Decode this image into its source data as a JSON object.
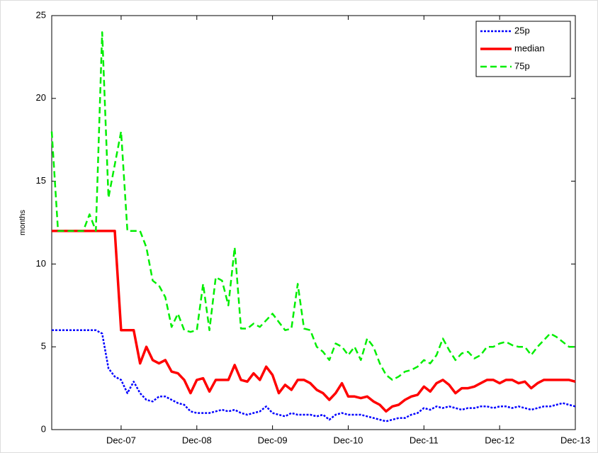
{
  "chart_data": {
    "type": "line",
    "ylabel": "months",
    "categories": [
      null,
      null,
      null,
      null,
      null,
      null,
      null,
      null,
      null,
      null,
      null,
      "Dec-07",
      null,
      null,
      null,
      null,
      null,
      null,
      null,
      null,
      null,
      null,
      null,
      "Dec-08",
      null,
      null,
      null,
      null,
      null,
      null,
      null,
      null,
      null,
      null,
      null,
      "Dec-09",
      null,
      null,
      null,
      null,
      null,
      null,
      null,
      null,
      null,
      null,
      null,
      "Dec-10",
      null,
      null,
      null,
      null,
      null,
      null,
      null,
      null,
      null,
      null,
      null,
      "Dec-11",
      null,
      null,
      null,
      null,
      null,
      null,
      null,
      null,
      null,
      null,
      null,
      "Dec-12",
      null,
      null,
      null,
      null,
      null,
      null,
      null,
      null,
      null,
      null,
      null,
      "Dec-13"
    ],
    "series": [
      {
        "name": "25p",
        "color": "#0000ff",
        "style": "dotted",
        "values": [
          6,
          6,
          6,
          6,
          6,
          6,
          6,
          6,
          5.8,
          3.7,
          3.2,
          3,
          2.2,
          2.9,
          2.2,
          1.8,
          1.7,
          2,
          2,
          1.8,
          1.6,
          1.5,
          1.1,
          1,
          1,
          1,
          1.1,
          1.2,
          1.1,
          1.2,
          1,
          0.9,
          1,
          1.1,
          1.4,
          1,
          0.9,
          0.8,
          1,
          0.9,
          0.9,
          0.9,
          0.8,
          0.9,
          0.6,
          0.9,
          1,
          0.9,
          0.9,
          0.9,
          0.8,
          0.7,
          0.6,
          0.5,
          0.6,
          0.7,
          0.7,
          0.9,
          1,
          1.3,
          1.2,
          1.4,
          1.3,
          1.4,
          1.3,
          1.2,
          1.3,
          1.3,
          1.4,
          1.4,
          1.3,
          1.4,
          1.4,
          1.3,
          1.4,
          1.3,
          1.2,
          1.3,
          1.4,
          1.4,
          1.5,
          1.6,
          1.5,
          1.4
        ]
      },
      {
        "name": "median",
        "color": "#ff0000",
        "style": "solid",
        "values": [
          12,
          12,
          12,
          12,
          12,
          12,
          12,
          12,
          12,
          12,
          12,
          6,
          6,
          6,
          4,
          5,
          4.2,
          4,
          4.2,
          3.5,
          3.4,
          3,
          2.2,
          3,
          3.1,
          2.3,
          3,
          3,
          3,
          3.9,
          3,
          2.9,
          3.4,
          3,
          3.8,
          3.3,
          2.2,
          2.7,
          2.4,
          3,
          3,
          2.8,
          2.4,
          2.2,
          1.8,
          2.2,
          2.8,
          2,
          2,
          1.9,
          2,
          1.7,
          1.5,
          1.1,
          1.4,
          1.5,
          1.8,
          2,
          2.1,
          2.6,
          2.3,
          2.8,
          3,
          2.7,
          2.2,
          2.5,
          2.5,
          2.6,
          2.8,
          3,
          3,
          2.8,
          3,
          3,
          2.8,
          2.9,
          2.5,
          2.8,
          3,
          3,
          3,
          3,
          3,
          2.9
        ]
      },
      {
        "name": "75p",
        "color": "#00ee00",
        "style": "dashed",
        "values": [
          18,
          12,
          12,
          12,
          12,
          12,
          13,
          12,
          24,
          14,
          16,
          18,
          12,
          12,
          12,
          11,
          9,
          8.7,
          8,
          6.2,
          7,
          6,
          5.9,
          6,
          8.8,
          6,
          9.2,
          9,
          7.5,
          11,
          6.1,
          6.1,
          6.4,
          6.2,
          6.6,
          7,
          6.5,
          6,
          6.1,
          8.8,
          6.1,
          6,
          5,
          4.7,
          4.2,
          5.2,
          5,
          4.5,
          5,
          4.2,
          5.5,
          5,
          4,
          3.3,
          3,
          3.2,
          3.5,
          3.6,
          3.8,
          4.2,
          4,
          4.5,
          5.5,
          4.8,
          4.2,
          4.6,
          4.7,
          4.3,
          4.5,
          5,
          5,
          5.2,
          5.3,
          5.1,
          5,
          5,
          4.5,
          5,
          5.4,
          5.8,
          5.6,
          5.3,
          5,
          5
        ]
      }
    ],
    "ylim": [
      0,
      25
    ],
    "yticks": [
      0,
      5,
      10,
      15,
      20,
      25
    ],
    "legend": "northeast",
    "grid": false
  }
}
